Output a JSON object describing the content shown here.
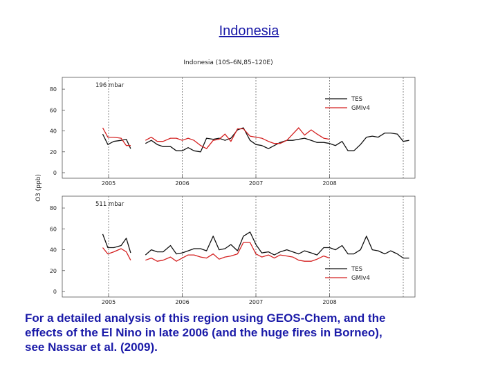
{
  "slide": {
    "title": "Indonesia",
    "caption_lines": [
      "For a detailed analysis of this region using GEOS-Chem, and the",
      "effects of the El Nino in late 2006 (and the huge fires in Borneo),",
      "see Nassar et al. (2009)."
    ]
  },
  "chart_data": [
    {
      "type": "line",
      "title": "Indonesia (10S–6N,85–120E)",
      "panel_label": "196 mbar",
      "ylabel": "O3 (ppb)",
      "xlim": [
        2004.25,
        2009.0
      ],
      "ylim": [
        0,
        90
      ],
      "yticks": [
        0,
        20,
        40,
        60,
        80
      ],
      "xticks": [
        2005,
        2006,
        2007,
        2008
      ],
      "vlines": [
        2005,
        2006,
        2007,
        2008,
        2009
      ],
      "legend_position": "right",
      "series": [
        {
          "name": "TES",
          "color": "#111111",
          "segments": [
            [
              [
                2004.92,
                37
              ],
              [
                2004.99,
                27
              ],
              [
                2005.07,
                30
              ],
              [
                2005.17,
                31
              ],
              [
                2005.24,
                32
              ],
              [
                2005.3,
                23
              ]
            ],
            [
              [
                2005.5,
                28
              ],
              [
                2005.58,
                31
              ],
              [
                2005.66,
                27
              ],
              [
                2005.74,
                25
              ],
              [
                2005.84,
                25
              ],
              [
                2005.92,
                21
              ],
              [
                2006.0,
                21
              ],
              [
                2006.08,
                24
              ],
              [
                2006.16,
                21
              ],
              [
                2006.25,
                20
              ],
              [
                2006.33,
                33
              ],
              [
                2006.42,
                32
              ],
              [
                2006.5,
                33
              ],
              [
                2006.58,
                31
              ],
              [
                2006.66,
                33
              ],
              [
                2006.75,
                41
              ],
              [
                2006.83,
                43
              ],
              [
                2006.92,
                31
              ],
              [
                2007.0,
                27
              ],
              [
                2007.08,
                26
              ],
              [
                2007.17,
                23
              ],
              [
                2007.25,
                26
              ],
              [
                2007.33,
                29
              ],
              [
                2007.42,
                31
              ],
              [
                2007.5,
                31
              ],
              [
                2007.58,
                32
              ],
              [
                2007.66,
                33
              ],
              [
                2007.75,
                31
              ],
              [
                2007.83,
                29
              ],
              [
                2007.92,
                29
              ],
              [
                2008.0,
                28
              ],
              [
                2008.08,
                26
              ],
              [
                2008.17,
                30
              ],
              [
                2008.25,
                21
              ],
              [
                2008.33,
                21
              ],
              [
                2008.42,
                27
              ],
              [
                2008.5,
                34
              ],
              [
                2008.58,
                35
              ],
              [
                2008.66,
                34
              ],
              [
                2008.75,
                38
              ],
              [
                2008.83,
                38
              ],
              [
                2008.92,
                37
              ],
              [
                2009.0,
                30
              ],
              [
                2009.08,
                31
              ]
            ]
          ]
        },
        {
          "name": "GMIv4",
          "color": "#d42020",
          "segments": [
            [
              [
                2004.92,
                43
              ],
              [
                2004.99,
                34
              ],
              [
                2005.07,
                34
              ],
              [
                2005.17,
                33
              ],
              [
                2005.24,
                26
              ],
              [
                2005.3,
                26
              ]
            ],
            [
              [
                2005.5,
                31
              ],
              [
                2005.58,
                34
              ],
              [
                2005.66,
                30
              ],
              [
                2005.74,
                30
              ],
              [
                2005.84,
                33
              ],
              [
                2005.92,
                33
              ],
              [
                2006.0,
                31
              ],
              [
                2006.08,
                33
              ],
              [
                2006.16,
                31
              ],
              [
                2006.25,
                26
              ],
              [
                2006.33,
                23
              ],
              [
                2006.42,
                31
              ],
              [
                2006.5,
                32
              ],
              [
                2006.58,
                37
              ],
              [
                2006.66,
                30
              ],
              [
                2006.75,
                42
              ],
              [
                2006.83,
                42
              ],
              [
                2006.92,
                35
              ],
              [
                2007.0,
                34
              ],
              [
                2007.08,
                33
              ],
              [
                2007.17,
                30
              ],
              [
                2007.25,
                28
              ],
              [
                2007.33,
                28
              ],
              [
                2007.42,
                31
              ],
              [
                2007.5,
                37
              ],
              [
                2007.58,
                43
              ],
              [
                2007.66,
                36
              ],
              [
                2007.75,
                41
              ],
              [
                2007.83,
                37
              ],
              [
                2007.92,
                33
              ],
              [
                2008.0,
                32
              ]
            ]
          ]
        }
      ]
    },
    {
      "type": "line",
      "title": "",
      "panel_label": "511 mbar",
      "ylabel": "O3 (ppb)",
      "xlim": [
        2004.25,
        2009.0
      ],
      "ylim": [
        0,
        90
      ],
      "yticks": [
        0,
        20,
        40,
        60,
        80
      ],
      "xticks": [
        2005,
        2006,
        2007,
        2008
      ],
      "vlines": [
        2005,
        2006,
        2007,
        2008,
        2009
      ],
      "legend_position": "bottom-right",
      "series": [
        {
          "name": "TES",
          "color": "#111111",
          "segments": [
            [
              [
                2004.92,
                55
              ],
              [
                2004.99,
                42
              ],
              [
                2005.07,
                42
              ],
              [
                2005.17,
                44
              ],
              [
                2005.24,
                51
              ],
              [
                2005.3,
                37
              ]
            ],
            [
              [
                2005.5,
                35
              ],
              [
                2005.58,
                40
              ],
              [
                2005.66,
                38
              ],
              [
                2005.74,
                38
              ],
              [
                2005.84,
                44
              ],
              [
                2005.92,
                36
              ],
              [
                2006.0,
                37
              ],
              [
                2006.08,
                39
              ],
              [
                2006.16,
                41
              ],
              [
                2006.25,
                41
              ],
              [
                2006.33,
                39
              ],
              [
                2006.42,
                53
              ],
              [
                2006.5,
                40
              ],
              [
                2006.58,
                41
              ],
              [
                2006.66,
                45
              ],
              [
                2006.75,
                39
              ],
              [
                2006.83,
                53
              ],
              [
                2006.92,
                57
              ],
              [
                2007.0,
                45
              ],
              [
                2007.08,
                37
              ],
              [
                2007.17,
                38
              ],
              [
                2007.25,
                35
              ],
              [
                2007.33,
                38
              ],
              [
                2007.42,
                40
              ],
              [
                2007.5,
                38
              ],
              [
                2007.58,
                36
              ],
              [
                2007.66,
                39
              ],
              [
                2007.75,
                37
              ],
              [
                2007.83,
                35
              ],
              [
                2007.92,
                42
              ],
              [
                2008.0,
                42
              ],
              [
                2008.08,
                40
              ],
              [
                2008.17,
                44
              ],
              [
                2008.25,
                36
              ],
              [
                2008.33,
                36
              ],
              [
                2008.42,
                40
              ],
              [
                2008.5,
                53
              ],
              [
                2008.58,
                40
              ],
              [
                2008.66,
                39
              ],
              [
                2008.75,
                36
              ],
              [
                2008.83,
                39
              ],
              [
                2008.92,
                36
              ],
              [
                2009.0,
                32
              ],
              [
                2009.08,
                32
              ]
            ]
          ]
        },
        {
          "name": "GMIv4",
          "color": "#d42020",
          "segments": [
            [
              [
                2004.92,
                42
              ],
              [
                2004.99,
                36
              ],
              [
                2005.07,
                38
              ],
              [
                2005.17,
                41
              ],
              [
                2005.24,
                38
              ],
              [
                2005.3,
                30
              ]
            ],
            [
              [
                2005.5,
                30
              ],
              [
                2005.58,
                32
              ],
              [
                2005.66,
                29
              ],
              [
                2005.74,
                30
              ],
              [
                2005.84,
                33
              ],
              [
                2005.92,
                29
              ],
              [
                2006.0,
                32
              ],
              [
                2006.08,
                35
              ],
              [
                2006.16,
                35
              ],
              [
                2006.25,
                33
              ],
              [
                2006.33,
                32
              ],
              [
                2006.42,
                36
              ],
              [
                2006.5,
                31
              ],
              [
                2006.58,
                33
              ],
              [
                2006.66,
                34
              ],
              [
                2006.75,
                36
              ],
              [
                2006.83,
                47
              ],
              [
                2006.92,
                47
              ],
              [
                2007.0,
                36
              ],
              [
                2007.08,
                33
              ],
              [
                2007.17,
                35
              ],
              [
                2007.25,
                32
              ],
              [
                2007.33,
                35
              ],
              [
                2007.42,
                34
              ],
              [
                2007.5,
                33
              ],
              [
                2007.58,
                30
              ],
              [
                2007.66,
                29
              ],
              [
                2007.75,
                29
              ],
              [
                2007.83,
                31
              ],
              [
                2007.92,
                34
              ],
              [
                2008.0,
                32
              ]
            ]
          ]
        }
      ]
    }
  ]
}
